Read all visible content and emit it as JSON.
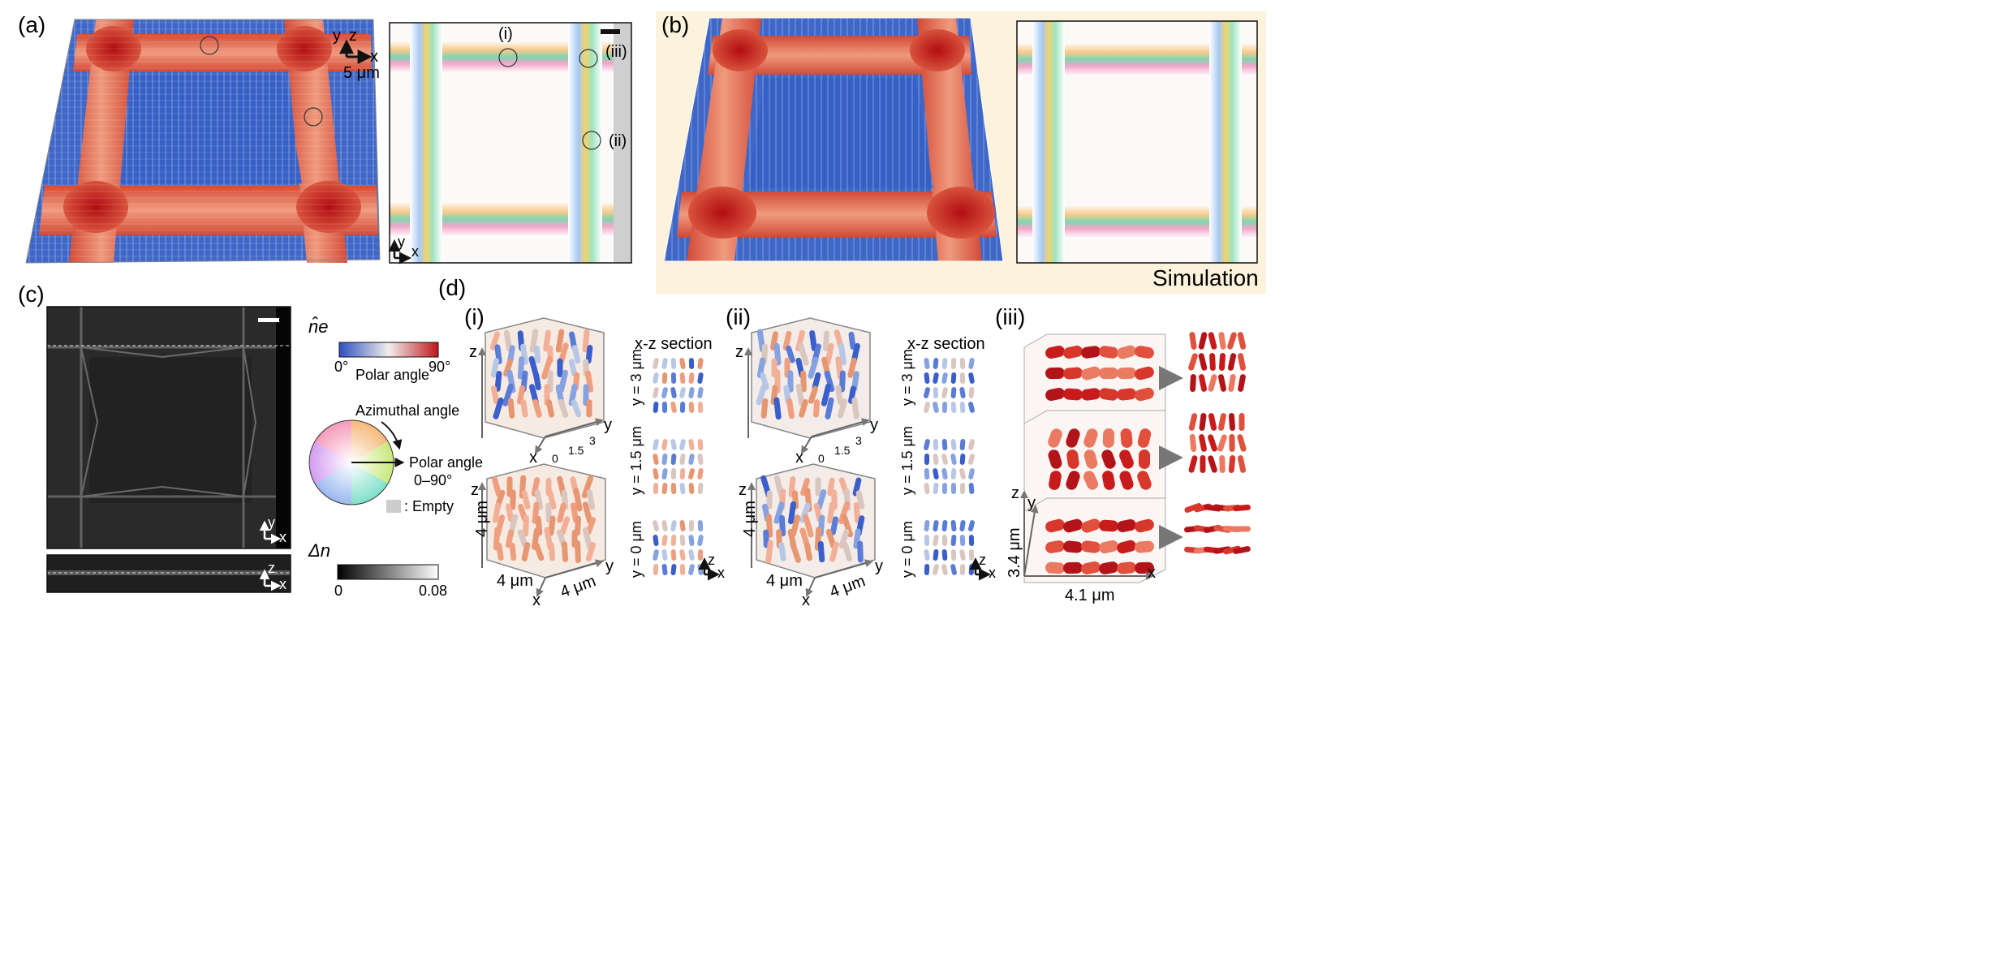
{
  "panels": {
    "a": {
      "label": "(a)",
      "axis_y": "y",
      "axis_z": "z",
      "axis_x": "x",
      "scale": "5 μm",
      "map_axis_y": "y",
      "map_axis_x": "x",
      "defects": [
        "(i)",
        "(ii)",
        "(iii)"
      ]
    },
    "b": {
      "label": "(b)",
      "tag": "Simulation"
    },
    "c": {
      "label": "(c)",
      "axis_y": "y",
      "axis_x": "x",
      "axis_z": "z",
      "axis_x2": "x"
    },
    "d": {
      "label": "(d)",
      "sub": [
        {
          "label": "(i)",
          "section_title": "x-z section",
          "cube_axes": {
            "z": "z",
            "x": "x",
            "y": "y"
          },
          "ticks": [
            "0",
            "1.5",
            "3"
          ],
          "slices": [
            "y = 3 μm",
            "y = 1.5 μm",
            "y = 0 μm"
          ],
          "dims": {
            "height": "4 μm",
            "xlen": "4 μm",
            "ylen": "4 μm"
          },
          "corner": {
            "z": "z",
            "x": "x"
          }
        },
        {
          "label": "(ii)",
          "section_title": "x-z section",
          "cube_axes": {
            "z": "z",
            "x": "x",
            "y": "y"
          },
          "ticks": [
            "0",
            "1.5",
            "3"
          ],
          "slices": [
            "y = 3 μm",
            "y = 1.5 μm",
            "y = 0 μm"
          ],
          "dims": {
            "height": "4 μm",
            "xlen": "4 μm",
            "ylen": "4 μm"
          },
          "corner": {
            "z": "z",
            "x": "x"
          }
        },
        {
          "label": "(iii)",
          "axes": {
            "z": "z",
            "y": "y",
            "x": "x"
          },
          "dims": {
            "height": "3.4 μm",
            "width": "4.1 μm"
          }
        }
      ]
    }
  },
  "legend": {
    "ne_symbol": "n̂e",
    "polar_min": "0°",
    "polar_max": "90°",
    "polar_label": "Polar angle",
    "azimuthal_label": "Azimuthal angle",
    "wheel_polar_label": "Polar angle",
    "wheel_polar_range": "0–90°",
    "empty_label": ": Empty",
    "dn_symbol": "Δn",
    "dn_min": "0",
    "dn_max": "0.08"
  },
  "colors": {
    "polar_low": "#3a5ec8",
    "polar_mid": "#f2f0ee",
    "polar_high": "#c81c1c",
    "background_b": "#fdf3dc",
    "empty": "#cccccc"
  }
}
